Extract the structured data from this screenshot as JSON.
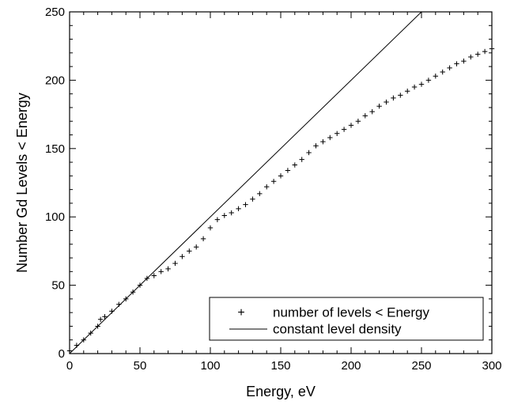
{
  "chart_data": {
    "type": "scatter",
    "title": "",
    "xlabel": "Energy, eV",
    "ylabel": "Number Gd Levels < Energy",
    "xlim": [
      0,
      300
    ],
    "ylim": [
      0,
      250
    ],
    "x_ticks": [
      0,
      50,
      100,
      150,
      200,
      250,
      300
    ],
    "x_tick_labels": [
      "0",
      "50",
      "100",
      "150",
      "200",
      "250",
      "300"
    ],
    "y_ticks": [
      0,
      50,
      100,
      150,
      200,
      250
    ],
    "y_tick_labels": [
      "0",
      "50",
      "100",
      "150",
      "200",
      "250"
    ],
    "grid": false,
    "legend_position": "bottom-right",
    "series": [
      {
        "name": "number of levels < Energy",
        "style": "cross-markers",
        "color": "#000000",
        "x": [
          0,
          5,
          10,
          15,
          20,
          22,
          25,
          30,
          35,
          40,
          45,
          50,
          55,
          60,
          65,
          70,
          75,
          80,
          85,
          90,
          95,
          100,
          105,
          110,
          115,
          120,
          125,
          130,
          135,
          140,
          145,
          150,
          155,
          160,
          165,
          170,
          175,
          180,
          185,
          190,
          195,
          200,
          205,
          210,
          215,
          220,
          225,
          230,
          235,
          240,
          245,
          250,
          255,
          260,
          265,
          270,
          275,
          280,
          285,
          290,
          295,
          300
        ],
        "y": [
          2,
          6,
          10,
          15,
          20,
          25,
          27,
          31,
          36,
          40,
          45,
          50,
          55,
          57,
          60,
          62,
          66,
          71,
          75,
          78,
          84,
          92,
          98,
          101,
          103,
          106,
          109,
          113,
          117,
          122,
          126,
          130,
          134,
          138,
          142,
          147,
          152,
          155,
          158,
          161,
          164,
          167,
          170,
          174,
          177,
          181,
          184,
          187,
          189,
          192,
          195,
          197,
          200,
          203,
          206,
          209,
          212,
          214,
          217,
          219,
          221,
          223
        ]
      },
      {
        "name": "constant level density",
        "style": "line",
        "color": "#000000",
        "x": [
          0,
          250
        ],
        "y": [
          0,
          250
        ]
      }
    ]
  }
}
